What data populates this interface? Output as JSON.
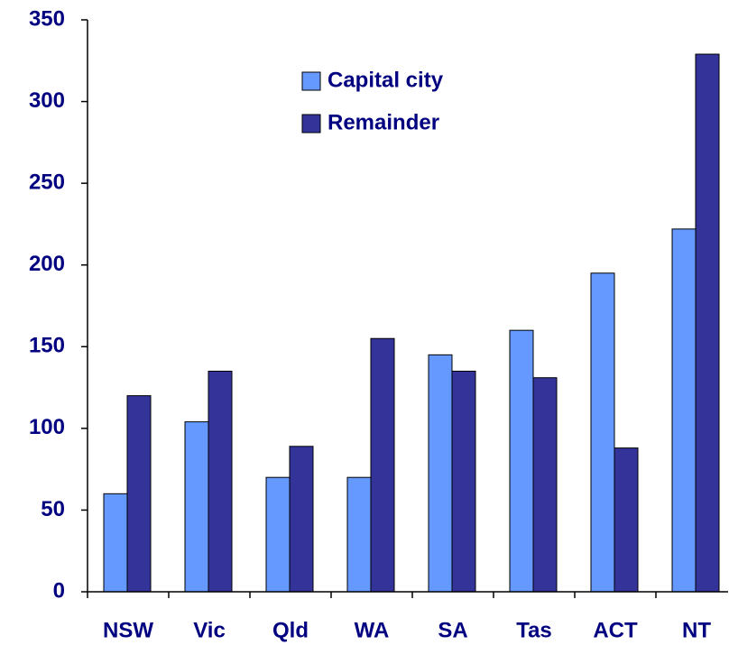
{
  "chart_data": {
    "type": "bar",
    "categories": [
      "NSW",
      "Vic",
      "Qld",
      "WA",
      "SA",
      "Tas",
      "ACT",
      "NT"
    ],
    "series": [
      {
        "name": "Capital city",
        "color": "#6699ff",
        "values": [
          60,
          104,
          70,
          70,
          145,
          160,
          195,
          222
        ]
      },
      {
        "name": "Remainder",
        "color": "#333399",
        "values": [
          120,
          135,
          89,
          155,
          135,
          131,
          88,
          329
        ]
      }
    ],
    "ylim": [
      0,
      350
    ],
    "yticks": [
      0,
      50,
      100,
      150,
      200,
      250,
      300,
      350
    ],
    "grid": false
  }
}
